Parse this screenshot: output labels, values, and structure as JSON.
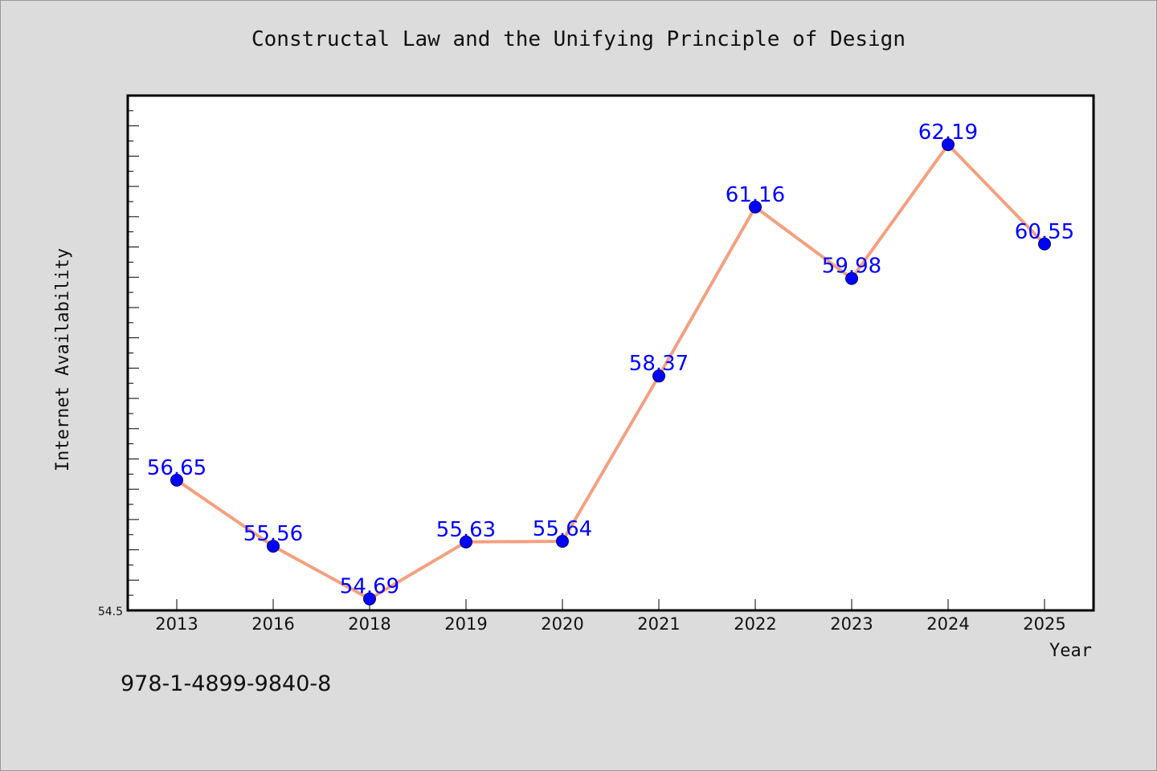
{
  "title": "Constructal Law and the Unifying Principle of Design",
  "footer_text": "978-1-4899-9840-8",
  "colors": {
    "background": "#dcdcdc",
    "plot_area": "#ffffff",
    "line": "#f4a07f",
    "marker": "#0000ff",
    "data_label": "#0000ff"
  },
  "chart_data": {
    "type": "line",
    "title": "Constructal Law and the Unifying Principle of Design",
    "xlabel": "Year",
    "ylabel": "Internet Availability",
    "categories": [
      "2013",
      "2016",
      "2018",
      "2019",
      "2020",
      "2021",
      "2022",
      "2023",
      "2024",
      "2025"
    ],
    "series": [
      {
        "values": [
          56.65,
          55.56,
          54.69,
          55.63,
          55.64,
          58.37,
          61.16,
          59.98,
          62.19,
          60.55
        ],
        "labels": [
          "56.65",
          "55.56",
          "54.69",
          "55.63",
          "55.64",
          "58.37",
          "61.16",
          "59.98",
          "62.19",
          "60.55"
        ]
      }
    ],
    "ylim": [
      54.5,
      63.0
    ],
    "y_tick_labels": [
      "54.5"
    ],
    "grid": false,
    "legend": "none"
  }
}
